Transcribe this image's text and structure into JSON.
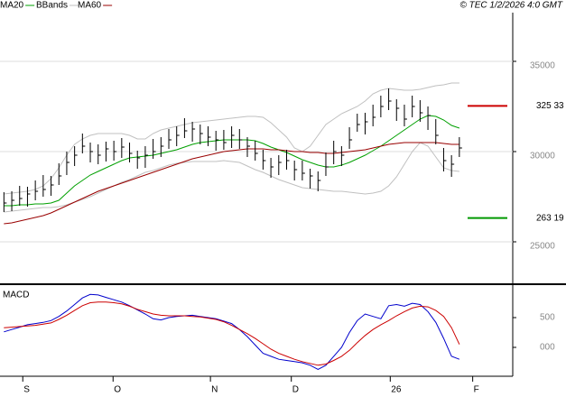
{
  "chart_data": [
    {
      "type": "ohlc",
      "source": "© TEC 1/2/2026 4:0 GMT",
      "x": [
        0,
        1,
        2,
        3,
        4,
        5,
        6,
        7,
        8,
        9,
        10,
        11,
        12,
        13,
        14,
        15,
        16,
        17,
        18,
        19,
        20,
        21,
        22,
        23,
        24,
        25,
        26,
        27,
        28,
        29,
        30,
        31,
        32,
        33,
        34,
        35,
        36,
        37,
        38,
        39,
        40,
        41,
        42,
        43,
        44,
        45,
        46,
        47,
        48,
        49,
        50,
        51,
        52,
        53,
        54,
        55,
        56,
        57,
        58
      ],
      "high": [
        27750,
        27800,
        28100,
        28050,
        28400,
        28700,
        28650,
        29350,
        30000,
        30300,
        31000,
        30500,
        30400,
        30550,
        30600,
        30750,
        30500,
        30050,
        30300,
        30700,
        30800,
        31250,
        31400,
        31850,
        31650,
        31500,
        31400,
        31150,
        31200,
        31400,
        31250,
        30800,
        30600,
        30100,
        29650,
        29800,
        30100,
        29500,
        29500,
        29050,
        28900,
        29950,
        30600,
        30300,
        31350,
        32100,
        32150,
        32600,
        33100,
        33500,
        32900,
        32600,
        33100,
        32850,
        32500,
        31800,
        30200,
        29800,
        30800
      ],
      "low": [
        26650,
        26700,
        27000,
        26950,
        27300,
        27500,
        27550,
        28150,
        28700,
        29200,
        29900,
        29400,
        29300,
        29450,
        29500,
        29650,
        29400,
        29050,
        29100,
        29600,
        29700,
        30150,
        30300,
        30750,
        30550,
        30400,
        30300,
        30050,
        30100,
        30200,
        30150,
        29700,
        29500,
        29000,
        28550,
        28700,
        29000,
        28400,
        28400,
        27950,
        27800,
        28650,
        29300,
        29200,
        30150,
        31100,
        30950,
        31400,
        31900,
        32300,
        31700,
        31400,
        31900,
        31650,
        31200,
        30400,
        28900,
        28600,
        29700
      ],
      "close": [
        27150,
        27300,
        27400,
        27650,
        27800,
        27900,
        28150,
        28650,
        29400,
        29800,
        30300,
        30000,
        29800,
        30150,
        30000,
        30250,
        29900,
        29650,
        29800,
        30000,
        30300,
        30650,
        30900,
        31150,
        31250,
        31000,
        30800,
        30650,
        30500,
        30900,
        30650,
        30300,
        29900,
        29500,
        29150,
        29400,
        29500,
        29000,
        28800,
        28650,
        28400,
        29150,
        30000,
        29800,
        30650,
        31500,
        31650,
        31900,
        32500,
        32800,
        32400,
        31800,
        32500,
        32150,
        32000,
        30900,
        29500,
        29300,
        30200
      ],
      "bar_color": "#000000",
      "series": [
        {
          "name": "MA20",
          "color": "#00a000",
          "values": [
            27000,
            27000,
            27050,
            27050,
            27100,
            27100,
            27150,
            27300,
            27700,
            28100,
            28400,
            28700,
            28900,
            29100,
            29300,
            29500,
            29650,
            29700,
            29750,
            29800,
            29900,
            30000,
            30100,
            30250,
            30400,
            30500,
            30550,
            30600,
            30650,
            30650,
            30650,
            30650,
            30600,
            30450,
            30250,
            30100,
            29950,
            29750,
            29550,
            29400,
            29250,
            29150,
            29150,
            29250,
            29400,
            29600,
            29800,
            30050,
            30300,
            30600,
            30900,
            31200,
            31500,
            31800,
            32000,
            31950,
            31750,
            31450,
            31300
          ]
        },
        {
          "name": "BBands",
          "color": "#c0c0c0",
          "upper": [
            27650,
            27700,
            27750,
            27800,
            27900,
            28100,
            28500,
            29100,
            29800,
            30400,
            30700,
            30900,
            31000,
            31000,
            31000,
            31000,
            30900,
            30700,
            30700,
            31000,
            31200,
            31300,
            31400,
            31500,
            31600,
            31650,
            31700,
            31750,
            31800,
            31850,
            31900,
            31950,
            31950,
            31900,
            31600,
            31200,
            30800,
            30200,
            30000,
            30300,
            30900,
            31500,
            31800,
            32100,
            32300,
            32500,
            32800,
            33200,
            33400,
            33500,
            33450,
            33400,
            33400,
            33450,
            33550,
            33650,
            33700,
            33800,
            33800
          ],
          "lower": [
            26650,
            26700,
            26750,
            26800,
            26850,
            26900,
            26900,
            26950,
            27050,
            27200,
            27350,
            27500,
            27700,
            27900,
            28100,
            28300,
            28450,
            28650,
            28850,
            28950,
            29100,
            29250,
            29350,
            29400,
            29450,
            29450,
            29450,
            29450,
            29500,
            29450,
            29400,
            29200,
            29000,
            28850,
            28650,
            28450,
            28300,
            28150,
            28000,
            27950,
            27900,
            27850,
            27800,
            27800,
            27750,
            27700,
            27650,
            27700,
            27800,
            28100,
            28600,
            29300,
            30000,
            30500,
            30300,
            29700,
            29100,
            28950,
            28900
          ]
        },
        {
          "name": "MA60",
          "color": "#990000",
          "values": [
            26000,
            26050,
            26150,
            26250,
            26350,
            26450,
            26600,
            26800,
            27000,
            27200,
            27400,
            27600,
            27800,
            27950,
            28100,
            28250,
            28400,
            28550,
            28700,
            28850,
            29000,
            29150,
            29300,
            29450,
            29600,
            29700,
            29800,
            29900,
            30000,
            30050,
            30100,
            30150,
            30150,
            30150,
            30100,
            30100,
            30050,
            30000,
            30000,
            29950,
            29950,
            29900,
            29900,
            29950,
            30000,
            30050,
            30100,
            30200,
            30300,
            30400,
            30450,
            30500,
            30500,
            30500,
            30500,
            30500,
            30450,
            30400,
            30400
          ]
        }
      ],
      "levels": [
        {
          "value": 32533,
          "label": "325 33",
          "color": "#cc0000"
        },
        {
          "value": 26319,
          "label": "263 19",
          "color": "#009900"
        }
      ],
      "xlim": [
        -0.5,
        64.8
      ],
      "ylim": [
        22650,
        37700
      ],
      "yticks": [
        35000,
        30000,
        25000
      ],
      "grid": true
    },
    {
      "type": "line",
      "title": "MACD",
      "x": [
        0,
        1,
        2,
        3,
        4,
        5,
        6,
        7,
        8,
        9,
        10,
        11,
        12,
        13,
        14,
        15,
        16,
        17,
        18,
        19,
        20,
        21,
        22,
        23,
        24,
        25,
        26,
        27,
        28,
        29,
        30,
        31,
        32,
        33,
        34,
        35,
        36,
        37,
        38,
        39,
        40,
        41,
        42,
        43,
        44,
        45,
        46,
        47,
        48,
        49,
        50,
        51,
        52,
        53,
        54,
        55,
        56,
        57,
        58
      ],
      "series": [
        {
          "color": "#0000cc",
          "values": [
            260,
            300,
            340,
            380,
            400,
            420,
            450,
            520,
            610,
            720,
            830,
            890,
            880,
            840,
            800,
            760,
            700,
            630,
            560,
            480,
            460,
            500,
            520,
            530,
            540,
            520,
            500,
            480,
            440,
            400,
            300,
            180,
            40,
            -100,
            -150,
            -200,
            -220,
            -240,
            -260,
            -300,
            -370,
            -300,
            -150,
            0,
            250,
            450,
            560,
            520,
            480,
            700,
            720,
            690,
            740,
            720,
            600,
            420,
            150,
            -150,
            -200
          ]
        },
        {
          "color": "#cc0000",
          "values": [
            330,
            340,
            350,
            360,
            370,
            390,
            410,
            470,
            540,
            620,
            700,
            750,
            760,
            760,
            750,
            730,
            690,
            640,
            600,
            560,
            540,
            530,
            530,
            530,
            520,
            510,
            490,
            470,
            430,
            370,
            300,
            230,
            150,
            60,
            -30,
            -100,
            -150,
            -200,
            -240,
            -270,
            -300,
            -280,
            -220,
            -150,
            -50,
            80,
            200,
            300,
            380,
            450,
            530,
            600,
            660,
            690,
            680,
            620,
            520,
            330,
            50
          ]
        }
      ],
      "xlim": [
        -0.5,
        64.8
      ],
      "xticks": [
        {
          "value": 2.4,
          "label": "S"
        },
        {
          "value": 13.9,
          "label": "O"
        },
        {
          "value": 26.3,
          "label": "N"
        },
        {
          "value": 36.6,
          "label": "D"
        },
        {
          "value": 49.2,
          "label": "26"
        },
        {
          "value": 59.7,
          "label": "F"
        }
      ],
      "ylim": [
        -485,
        1015
      ],
      "yticks": [
        500,
        {
          "value": 0,
          "label": "000"
        }
      ],
      "grid": false
    }
  ]
}
